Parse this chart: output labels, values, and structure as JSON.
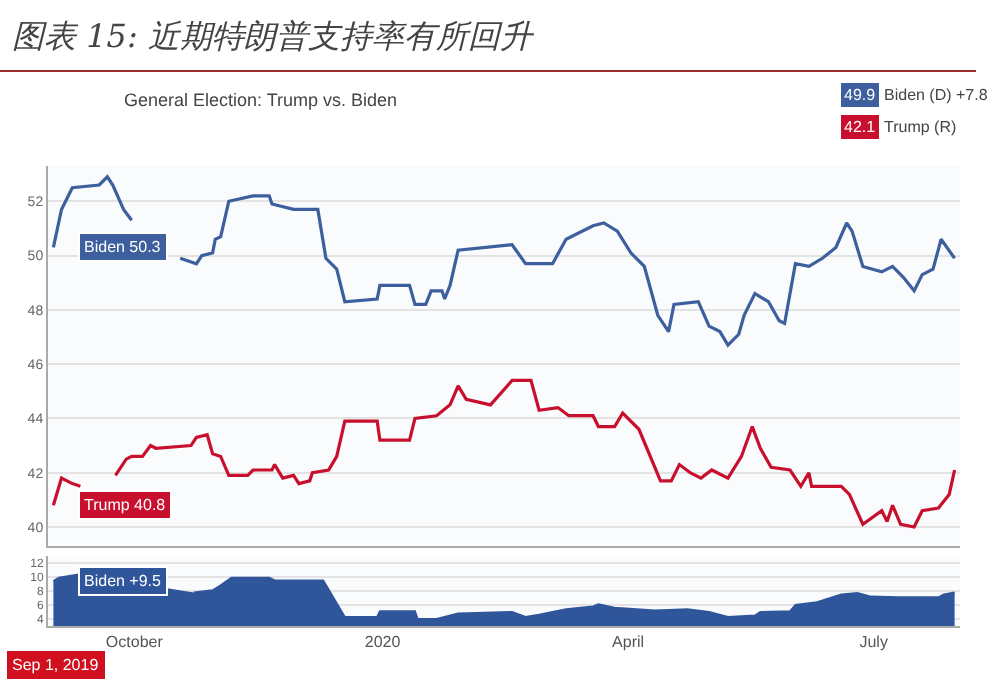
{
  "chart_data": [
    {
      "type": "line",
      "title": "图表 15: 近期特朗普支持率有所回升",
      "subtitle": "General Election: Trump vs. Biden",
      "xlim": [
        "2019-08-30",
        "2020-08-02"
      ],
      "ylim": [
        39.3,
        53.3
      ],
      "yticks": [
        40,
        42,
        44,
        46,
        48,
        50,
        52
      ],
      "grid": "y",
      "tick_labels": "y",
      "series": [
        {
          "color": "#3d5f9e",
          "x": [
            "2019-09-01",
            "2019-09-04",
            "2019-09-08",
            "2019-09-18",
            "2019-09-21",
            "2019-09-23",
            "2019-09-27",
            "2019-09-30",
            "2019-10-09",
            "2019-10-18",
            "2019-10-24",
            "2019-10-26",
            "2019-10-30",
            "2019-10-31",
            "2019-11-02",
            "2019-11-05",
            "2019-11-14",
            "2019-11-20",
            "2019-11-21",
            "2019-11-29",
            "2019-12-08",
            "2019-12-11",
            "2019-12-15",
            "2019-12-18",
            "2019-12-30",
            "2019-12-31",
            "2020-01-11",
            "2020-01-13",
            "2020-01-17",
            "2020-01-19",
            "2020-01-23",
            "2020-01-24",
            "2020-01-26",
            "2020-01-29",
            "2020-02-18",
            "2020-02-23",
            "2020-03-04",
            "2020-03-09",
            "2020-03-19",
            "2020-03-23",
            "2020-03-28",
            "2020-04-02",
            "2020-04-07",
            "2020-04-12",
            "2020-04-16",
            "2020-04-18",
            "2020-04-27",
            "2020-05-01",
            "2020-05-05",
            "2020-05-08",
            "2020-05-12",
            "2020-05-14",
            "2020-05-18",
            "2020-05-23",
            "2020-05-27",
            "2020-05-29",
            "2020-06-02",
            "2020-06-07",
            "2020-06-12",
            "2020-06-17",
            "2020-06-21",
            "2020-06-23",
            "2020-06-27",
            "2020-07-04",
            "2020-07-08",
            "2020-07-12",
            "2020-07-16",
            "2020-07-19",
            "2020-07-23",
            "2020-07-26",
            "2020-07-31"
          ],
          "values": [
            50.3,
            51.7,
            52.5,
            52.6,
            52.9,
            52.6,
            51.7,
            51.3,
            null,
            49.9,
            49.7,
            50.0,
            50.1,
            50.6,
            50.7,
            52.0,
            52.2,
            52.2,
            51.9,
            51.7,
            51.7,
            49.9,
            49.5,
            48.3,
            48.4,
            48.9,
            48.9,
            48.2,
            48.2,
            48.7,
            48.7,
            48.4,
            48.9,
            50.2,
            50.4,
            49.7,
            49.7,
            50.6,
            51.1,
            51.2,
            50.9,
            50.1,
            49.6,
            47.8,
            47.2,
            48.2,
            48.3,
            47.4,
            47.2,
            46.7,
            47.1,
            47.8,
            48.6,
            48.3,
            47.6,
            47.5,
            49.7,
            49.6,
            49.9,
            50.3,
            51.2,
            50.9,
            49.6,
            49.4,
            49.6,
            49.2,
            48.7,
            49.3,
            49.5,
            50.6,
            49.9
          ]
        },
        {
          "color": "#c8102e",
          "x": [
            "2019-09-01",
            "2019-09-04",
            "2019-09-08",
            "2019-09-11",
            "2019-09-17",
            "2019-09-24",
            "2019-09-28",
            "2019-09-30",
            "2019-10-04",
            "2019-10-07",
            "2019-10-09",
            "2019-10-22",
            "2019-10-24",
            "2019-10-28",
            "2019-10-30",
            "2019-11-02",
            "2019-11-05",
            "2019-11-12",
            "2019-11-14",
            "2019-11-21",
            "2019-11-22",
            "2019-11-25",
            "2019-11-29",
            "2019-12-01",
            "2019-12-05",
            "2019-12-06",
            "2019-12-12",
            "2019-12-15",
            "2019-12-18",
            "2019-12-30",
            "2019-12-31",
            "2020-01-11",
            "2020-01-13",
            "2020-01-21",
            "2020-01-26",
            "2020-01-29",
            "2020-02-01",
            "2020-02-10",
            "2020-02-18",
            "2020-02-25",
            "2020-02-28",
            "2020-03-06",
            "2020-03-10",
            "2020-03-19",
            "2020-03-21",
            "2020-03-27",
            "2020-03-30",
            "2020-04-05",
            "2020-04-13",
            "2020-04-17",
            "2020-04-20",
            "2020-04-24",
            "2020-04-28",
            "2020-05-02",
            "2020-05-08",
            "2020-05-13",
            "2020-05-17",
            "2020-05-20",
            "2020-05-24",
            "2020-05-31",
            "2020-06-04",
            "2020-06-07",
            "2020-06-08",
            "2020-06-19",
            "2020-06-22",
            "2020-06-27",
            "2020-07-04",
            "2020-07-06",
            "2020-07-08",
            "2020-07-11",
            "2020-07-16",
            "2020-07-19",
            "2020-07-25",
            "2020-07-29",
            "2020-07-31"
          ],
          "values": [
            40.8,
            41.8,
            41.6,
            41.5,
            null,
            41.9,
            42.5,
            42.6,
            42.6,
            43.0,
            42.9,
            43.0,
            43.3,
            43.4,
            42.7,
            42.6,
            41.9,
            41.9,
            42.1,
            42.1,
            42.3,
            41.8,
            41.9,
            41.6,
            41.7,
            42.0,
            42.1,
            42.6,
            43.9,
            43.9,
            43.2,
            43.2,
            44.0,
            44.1,
            44.5,
            45.2,
            44.7,
            44.5,
            45.4,
            45.4,
            44.3,
            44.4,
            44.1,
            44.1,
            43.7,
            43.7,
            44.2,
            43.6,
            41.7,
            41.7,
            42.3,
            42.0,
            41.8,
            42.1,
            41.8,
            42.6,
            43.7,
            42.9,
            42.2,
            42.1,
            41.5,
            42.0,
            41.5,
            41.5,
            41.2,
            40.1,
            40.6,
            40.2,
            40.8,
            40.1,
            40.0,
            40.6,
            40.7,
            41.2,
            42.1
          ]
        }
      ],
      "annotations": [
        {
          "text": "Biden 50.3",
          "x": "2019-09-01",
          "y": 50.3
        },
        {
          "text": "Trump 40.8",
          "x": "2019-09-01",
          "y": 40.8
        },
        "49.9",
        "Biden (D) +7.8",
        "42.1",
        "Trump (R)"
      ]
    },
    {
      "type": "area",
      "color": "#2f559a",
      "xlim": [
        "2019-08-30",
        "2020-08-02"
      ],
      "ylim": [
        3,
        13
      ],
      "yticks": [
        4,
        6,
        8,
        10,
        12
      ],
      "grid": "y",
      "xticks": [
        {
          "value": "2019-10-01",
          "label": "October"
        },
        {
          "value": "2020-01-01",
          "label": "2020"
        },
        {
          "value": "2020-04-01",
          "label": "April"
        },
        {
          "value": "2020-07-01",
          "label": "July"
        }
      ],
      "x": [
        "2019-09-01",
        "2019-09-03",
        "2019-09-11",
        "2019-09-15",
        "2019-10-07",
        "2019-10-23",
        "2019-10-30",
        "2019-11-02",
        "2019-11-06",
        "2019-11-20",
        "2019-11-22",
        "2019-12-10",
        "2019-12-18",
        "2019-12-30",
        "2019-12-31",
        "2020-01-13",
        "2020-01-14",
        "2020-01-21",
        "2020-01-29",
        "2020-02-18",
        "2020-02-23",
        "2020-02-28",
        "2020-03-09",
        "2020-03-19",
        "2020-03-21",
        "2020-03-27",
        "2020-04-11",
        "2020-04-23",
        "2020-05-01",
        "2020-05-08",
        "2020-05-18",
        "2020-05-20",
        "2020-05-31",
        "2020-06-02",
        "2020-06-10",
        "2020-06-19",
        "2020-06-25",
        "2020-06-30",
        "2020-07-10",
        "2020-07-25",
        "2020-07-27",
        "2020-07-31"
      ],
      "values": [
        9.4,
        9.9,
        10.4,
        null,
        null,
        7.8,
        8.1,
        8.8,
        9.9,
        9.9,
        9.5,
        9.5,
        4.3,
        4.3,
        5.1,
        5.1,
        4.0,
        4.0,
        4.8,
        5.0,
        4.3,
        4.6,
        5.4,
        5.8,
        6.1,
        5.6,
        5.2,
        5.4,
        5.0,
        4.3,
        4.5,
        5.0,
        5.1,
        6.0,
        6.4,
        7.5,
        7.7,
        7.2,
        7.1,
        7.1,
        7.5,
        7.8
      ],
      "annotations": [
        {
          "text": "Biden +9.5",
          "x": "2019-09-01",
          "y": 9.5
        },
        "Sep 1, 2019"
      ]
    }
  ]
}
